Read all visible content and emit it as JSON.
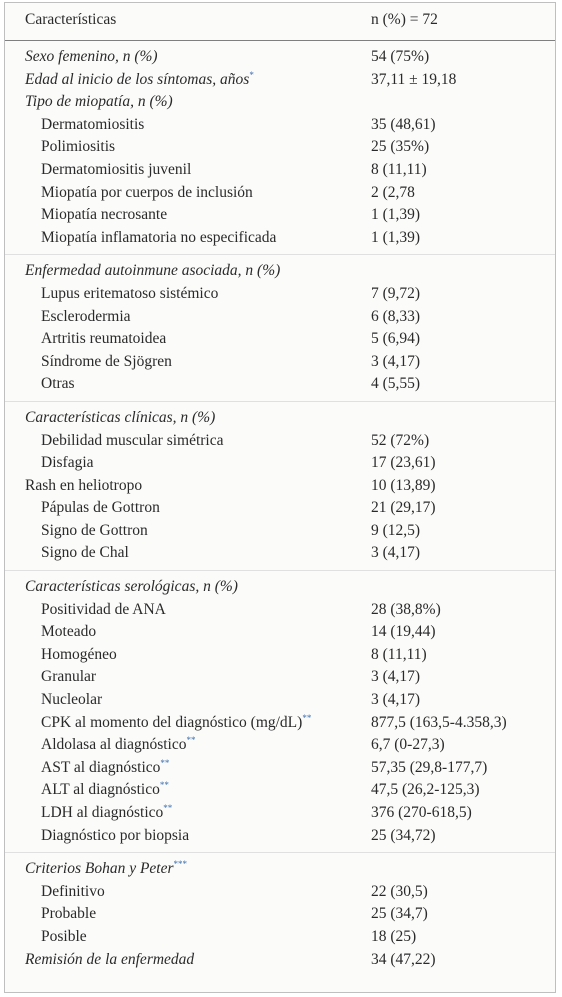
{
  "table": {
    "header": [
      "Características",
      "n (%) = 72"
    ],
    "sections": [
      {
        "items": [
          {
            "label": "Sexo femenino, n (%)",
            "italic": true,
            "value": "54 (75%)"
          },
          {
            "label": "Edad al inicio de los síntomas, años",
            "note": "*",
            "italic": true,
            "value": "37,11 ± 19,18"
          },
          {
            "label": "Tipo de miopatía, n (%)",
            "italic": true,
            "items": [
              {
                "label": "Dermatomiositis",
                "value": "35 (48,61)"
              },
              {
                "label": "Polimiositis",
                "value": "25 (35%)"
              },
              {
                "label": "Dermatomiositis juvenil",
                "value": "8 (11,11)"
              },
              {
                "label": "Miopatía por cuerpos de inclusión",
                "value": "2 (2,78"
              },
              {
                "label": "Miopatía necrosante",
                "value": "1 (1,39)"
              },
              {
                "label": "Miopatía inflamatoria no especificada",
                "value": "1 (1,39)"
              }
            ]
          }
        ]
      },
      {
        "items": [
          {
            "label": "Enfermedad autoinmune asociada, n (%)",
            "italic": true,
            "items": [
              {
                "label": "Lupus eritematoso sistémico",
                "value": "7 (9,72)"
              },
              {
                "label": "Esclerodermia",
                "value": "6 (8,33)"
              },
              {
                "label": "Artritis reumatoidea",
                "value": "5 (6,94)"
              },
              {
                "label": "Síndrome de Sjögren",
                "value": "3 (4,17)"
              },
              {
                "label": "Otras",
                "value": "4 (5,55)"
              }
            ]
          }
        ]
      },
      {
        "items": [
          {
            "label": "Características clínicas, n (%)",
            "italic": true,
            "items": [
              {
                "label": "Debilidad muscular simétrica",
                "value": "52 (72%)"
              },
              {
                "label": "Disfagia",
                "value": "17 (23,61)"
              }
            ]
          },
          {
            "label": "Rash en heliotropo",
            "italic": false,
            "value": "10 (13,89)",
            "items": [
              {
                "label": "Pápulas de Gottron",
                "value": "21 (29,17)"
              },
              {
                "label": "Signo de Gottron",
                "value": "9 (12,5)"
              },
              {
                "label": "Signo de Chal",
                "value": "3 (4,17)"
              }
            ]
          }
        ]
      },
      {
        "items": [
          {
            "label": "Características serológicas, n (%)",
            "italic": true,
            "items": [
              {
                "label": "Positividad de ANA",
                "value": "28 (38,8%)"
              },
              {
                "label": "Moteado",
                "value": "14 (19,44)"
              },
              {
                "label": "Homogéneo",
                "value": "8 (11,11)"
              },
              {
                "label": "Granular",
                "value": "3 (4,17)"
              },
              {
                "label": "Nucleolar",
                "value": "3 (4,17)"
              },
              {
                "label": "CPK al momento del diagnóstico (mg/dL)",
                "note": "**",
                "value": "877,5 (163,5-4.358,3)"
              },
              {
                "label": "Aldolasa al diagnóstico",
                "note": "**",
                "value": "6,7 (0-27,3)"
              },
              {
                "label": "AST al diagnóstico",
                "note": "**",
                "value": "57,35 (29,8-177,7)"
              },
              {
                "label": "ALT al diagnóstico",
                "note": "**",
                "value": "47,5 (26,2-125,3)"
              },
              {
                "label": "LDH al diagnóstico",
                "note": "**",
                "value": "376 (270-618,5)"
              },
              {
                "label": "Diagnóstico por biopsia",
                "value": "25 (34,72)"
              }
            ]
          }
        ]
      },
      {
        "items": [
          {
            "label": "Criterios Bohan y Peter",
            "note": "***",
            "italic": true,
            "items": [
              {
                "label": "Definitivo",
                "value": "22 (30,5)"
              },
              {
                "label": "Probable",
                "value": "25 (34,7)"
              },
              {
                "label": "Posible",
                "value": "18 (25)"
              }
            ]
          },
          {
            "label": "Remisión de la enfermedad",
            "italic": true,
            "value": "34 (47,22)"
          }
        ]
      }
    ]
  }
}
